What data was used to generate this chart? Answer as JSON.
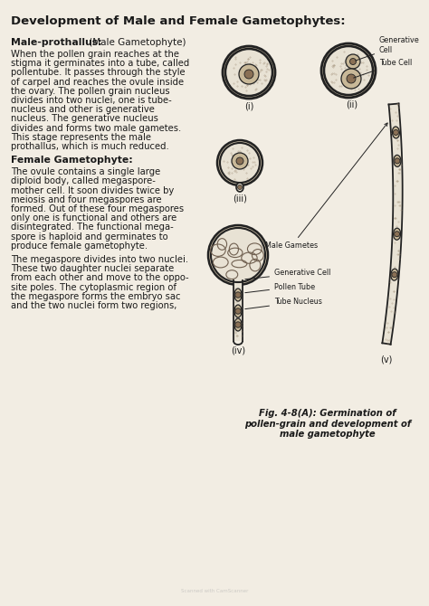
{
  "title": "Development of Male and Female Gametophytes:",
  "bg_color": "#f2ede3",
  "text_color": "#1a1a1a",
  "fig_caption": "Fig. 4-8(A): Germination of\npollen-grain and development of\nmale gametophyte",
  "labels": {
    "generative_cell": "Generative\nCell",
    "tube_cell": "Tube Cell",
    "fig_i": "(i)",
    "fig_ii": "(ii)",
    "fig_iii": "(iii)",
    "fig_iv": "(iv)",
    "fig_v": "(v)",
    "male_gametes": "Male Gametes",
    "gen_cell_iv": "Generative Cell",
    "pollen_tube": "Pollen Tube",
    "tube_nucleus": "Tube Nucleus"
  },
  "grain_fill": "#e8e2d4",
  "dark_outline": "#222222",
  "nucleus_fill": "#c8b898",
  "nucleolus_fill": "#8a7055"
}
